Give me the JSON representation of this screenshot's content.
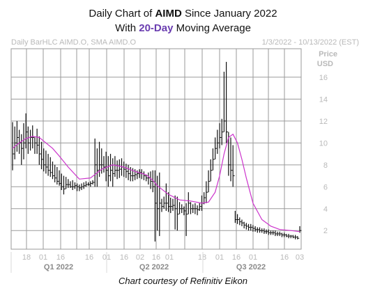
{
  "header": {
    "title_prefix": "Daily Chart of ",
    "title_ticker": "AIMD",
    "title_suffix": " Since January 2022",
    "subtitle_prefix": "With ",
    "subtitle_highlight": "20-Day",
    "subtitle_suffix": " Moving Average",
    "highlight_color": "#6a3db0"
  },
  "chart_meta": {
    "series_label": "Daily BarHLC AIMD.O, SMA AIMD.O",
    "date_range": "1/3/2022 - 10/13/2022 (EST)",
    "unit_line1": "Price",
    "unit_line2": "USD"
  },
  "caption": "Chart courtesy of Refinitiv Eikon",
  "chart_data": {
    "type": "line",
    "subtype": "ohlc-bar",
    "ylim": [
      0.3,
      18.6
    ],
    "y_ticks": [
      "2",
      "4",
      "6",
      "8",
      "10",
      "12",
      "14",
      "16"
    ],
    "x_ticks": [
      "18",
      "01",
      "16",
      "16",
      "01",
      "16",
      "02",
      "16",
      "01",
      "18",
      "01",
      "16",
      "01",
      "16",
      "03"
    ],
    "periods": [
      "Q1 2022",
      "Q2 2022",
      "Q3 2022"
    ],
    "grid": true,
    "colors": {
      "bars": "#111111",
      "sma": "#cc33cc",
      "grid": "#9a9a9a",
      "axis_text": "#b9b9b9",
      "period_text": "#8a8a8a"
    },
    "series": [
      {
        "name": "AIMD.O",
        "kind": "hlc",
        "high": [
          11.9,
          11.5,
          12.0,
          11.2,
          10.8,
          11.8,
          12.7,
          11.5,
          11.2,
          11.6,
          10.5,
          11.3,
          10.6,
          10.1,
          9.5,
          9.3,
          9.0,
          8.7,
          8.3,
          8.0,
          7.8,
          7.5,
          7.2,
          7.0,
          6.9,
          6.7,
          6.5,
          6.6,
          6.4,
          6.3,
          6.2,
          6.3,
          6.4,
          6.5,
          6.4,
          6.5,
          6.6,
          10.4,
          9.5,
          10.1,
          9.5,
          8.8,
          9.2,
          8.8,
          9.0,
          8.6,
          8.8,
          8.4,
          8.5,
          8.6,
          8.3,
          8.1,
          8.0,
          7.8,
          7.7,
          7.6,
          7.5,
          7.6,
          7.6,
          7.4,
          7.1,
          7.3,
          7.4,
          7.5,
          7.5,
          7.0,
          7.3,
          4.9,
          5.1,
          6.3,
          5.5,
          5.0,
          4.9,
          5.2,
          5.1,
          4.6,
          4.4,
          4.2,
          4.5,
          5.5,
          4.6,
          4.4,
          4.5,
          4.3,
          4.5,
          5.2,
          5.5,
          6.5,
          7.5,
          8.5,
          9.5,
          10.5,
          11.2,
          11.8,
          12.2,
          16.5,
          17.4,
          11.0,
          10.5,
          9.8,
          3.8,
          3.5,
          3.2,
          3.0,
          2.8,
          2.7,
          2.6,
          2.6,
          2.5,
          2.4,
          2.3,
          2.3,
          2.2,
          2.2,
          2.1,
          2.1,
          2.0,
          2.0,
          2.0,
          1.9,
          1.9,
          1.8,
          1.8,
          1.7,
          1.7,
          1.6,
          1.6,
          1.6,
          1.5,
          2.4
        ],
        "low": [
          7.5,
          8.5,
          9.2,
          9.0,
          8.0,
          8.5,
          9.5,
          9.0,
          9.3,
          9.5,
          9.0,
          9.0,
          8.0,
          7.6,
          7.4,
          7.2,
          7.0,
          6.9,
          6.7,
          6.4,
          6.2,
          6.1,
          5.7,
          5.3,
          5.8,
          5.9,
          5.9,
          5.7,
          5.8,
          5.6,
          5.6,
          5.7,
          5.8,
          6.0,
          6.1,
          6.0,
          6.2,
          6.0,
          6.0,
          6.9,
          7.2,
          7.3,
          6.5,
          6.0,
          6.5,
          6.0,
          6.9,
          6.7,
          6.8,
          7.0,
          6.9,
          6.8,
          6.6,
          6.5,
          6.5,
          6.6,
          6.7,
          6.8,
          6.7,
          6.6,
          6.5,
          6.2,
          5.8,
          5.5,
          1.0,
          2.0,
          1.5,
          3.7,
          4.0,
          3.8,
          3.7,
          3.6,
          3.8,
          2.1,
          2.0,
          3.5,
          3.6,
          3.4,
          1.5,
          3.5,
          3.5,
          3.6,
          3.5,
          3.4,
          3.8,
          3.8,
          4.4,
          4.5,
          5.5,
          6.5,
          7.5,
          8.5,
          9.0,
          9.5,
          9.8,
          11.0,
          10.0,
          7.0,
          6.5,
          6.0,
          2.7,
          2.6,
          2.5,
          2.4,
          2.2,
          2.1,
          2.0,
          2.0,
          1.9,
          1.9,
          1.8,
          1.8,
          1.8,
          1.7,
          1.7,
          1.6,
          1.6,
          1.6,
          1.5,
          1.5,
          1.5,
          1.4,
          1.4,
          1.4,
          1.3,
          1.3,
          1.3,
          1.2,
          1.2,
          1.8
        ],
        "close": [
          9.0,
          10.0,
          10.5,
          10.0,
          9.5,
          10.0,
          11.0,
          10.0,
          10.5,
          10.5,
          10.0,
          9.8,
          9.0,
          8.5,
          8.0,
          7.8,
          7.5,
          7.3,
          7.0,
          6.8,
          6.5,
          6.3,
          6.0,
          5.8,
          6.2,
          6.2,
          6.0,
          6.0,
          6.1,
          6.0,
          5.9,
          6.0,
          6.1,
          6.2,
          6.2,
          6.3,
          6.4,
          8.0,
          7.5,
          8.0,
          8.0,
          7.8,
          7.5,
          7.0,
          7.5,
          7.2,
          7.5,
          7.5,
          7.6,
          7.8,
          7.6,
          7.4,
          7.2,
          7.0,
          7.0,
          7.1,
          7.2,
          7.3,
          7.2,
          7.0,
          6.8,
          6.8,
          6.5,
          6.0,
          4.5,
          4.0,
          4.5,
          4.2,
          4.5,
          4.5,
          4.2,
          4.2,
          4.3,
          4.0,
          3.5,
          4.0,
          4.0,
          3.8,
          3.5,
          4.5,
          4.0,
          4.0,
          4.0,
          3.9,
          4.2,
          4.5,
          5.0,
          5.5,
          6.5,
          7.5,
          8.5,
          9.5,
          10.0,
          10.5,
          11.0,
          12.0,
          11.0,
          8.0,
          7.5,
          7.0,
          3.0,
          3.0,
          2.8,
          2.7,
          2.5,
          2.4,
          2.3,
          2.3,
          2.2,
          2.1,
          2.1,
          2.0,
          2.0,
          1.9,
          1.9,
          1.8,
          1.8,
          1.8,
          1.7,
          1.7,
          1.7,
          1.6,
          1.6,
          1.5,
          1.5,
          1.5,
          1.4,
          1.4,
          1.3,
          2.0
        ]
      },
      {
        "name": "SMA AIMD.O",
        "kind": "sma",
        "window": 20,
        "x": [
          0,
          3,
          6,
          9,
          12,
          15,
          18,
          21,
          25,
          30,
          35,
          40,
          45,
          50,
          55,
          60,
          63,
          65,
          70,
          75,
          80,
          85,
          88,
          91,
          93,
          95,
          97,
          99,
          101,
          103,
          105,
          108,
          112,
          116,
          120,
          125,
          129
        ],
        "y": [
          9.5,
          10.0,
          10.4,
          10.6,
          10.5,
          10.0,
          9.5,
          8.8,
          7.8,
          6.7,
          6.8,
          7.6,
          8.0,
          7.8,
          7.4,
          7.1,
          6.6,
          6.1,
          5.3,
          4.8,
          4.7,
          4.5,
          4.6,
          5.5,
          7.0,
          9.0,
          10.5,
          10.8,
          10.0,
          8.5,
          6.8,
          4.5,
          3.0,
          2.4,
          2.1,
          2.0,
          1.9
        ]
      }
    ]
  }
}
